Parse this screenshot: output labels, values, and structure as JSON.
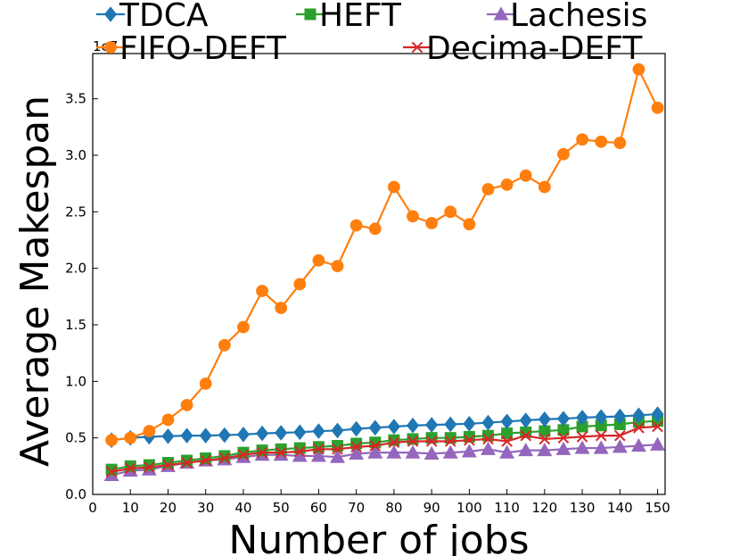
{
  "chart_data": {
    "type": "line",
    "xlabel": "Number of jobs",
    "ylabel": "Average Makespan",
    "y_offset_label": "1e7",
    "xlim": [
      0,
      152
    ],
    "ylim": [
      0,
      3.9
    ],
    "y_scale": 10000000,
    "x_ticks": [
      0,
      10,
      20,
      30,
      40,
      50,
      60,
      70,
      80,
      90,
      100,
      110,
      120,
      130,
      140,
      150
    ],
    "y_ticks": [
      0.0,
      0.5,
      1.0,
      1.5,
      2.0,
      2.5,
      3.0,
      3.5
    ],
    "y_tick_labels": [
      "0.0",
      "0.5",
      "1.0",
      "1.5",
      "2.0",
      "2.5",
      "3.0",
      "3.5"
    ],
    "grid": false,
    "legend_position": "top",
    "x": [
      5,
      10,
      15,
      20,
      25,
      30,
      35,
      40,
      45,
      50,
      55,
      60,
      65,
      70,
      75,
      80,
      85,
      90,
      95,
      100,
      105,
      110,
      115,
      120,
      125,
      130,
      135,
      140,
      145,
      150
    ],
    "series": [
      {
        "name": "TDCA",
        "color": "#1f77b4",
        "marker": "diamond",
        "values": [
          0.48,
          0.5,
          0.51,
          0.515,
          0.52,
          0.52,
          0.525,
          0.53,
          0.54,
          0.545,
          0.55,
          0.56,
          0.565,
          0.58,
          0.59,
          0.6,
          0.61,
          0.615,
          0.62,
          0.625,
          0.635,
          0.645,
          0.655,
          0.665,
          0.67,
          0.68,
          0.685,
          0.69,
          0.7,
          0.71
        ]
      },
      {
        "name": "HEFT",
        "color": "#2ca02c",
        "marker": "square",
        "values": [
          0.22,
          0.25,
          0.26,
          0.28,
          0.3,
          0.32,
          0.34,
          0.37,
          0.39,
          0.4,
          0.41,
          0.42,
          0.43,
          0.45,
          0.46,
          0.48,
          0.49,
          0.5,
          0.5,
          0.51,
          0.52,
          0.54,
          0.55,
          0.56,
          0.57,
          0.6,
          0.61,
          0.62,
          0.64,
          0.65
        ]
      },
      {
        "name": "Lachesis",
        "color": "#9467bd",
        "marker": "triangle",
        "values": [
          0.17,
          0.21,
          0.22,
          0.25,
          0.28,
          0.3,
          0.31,
          0.33,
          0.35,
          0.35,
          0.34,
          0.34,
          0.33,
          0.36,
          0.37,
          0.37,
          0.37,
          0.36,
          0.37,
          0.38,
          0.4,
          0.37,
          0.39,
          0.39,
          0.4,
          0.41,
          0.41,
          0.42,
          0.43,
          0.44
        ]
      },
      {
        "name": "FIFO-DEFT",
        "color": "#ff7f0e",
        "marker": "circle",
        "values": [
          0.48,
          0.5,
          0.56,
          0.66,
          0.79,
          0.98,
          1.32,
          1.48,
          1.8,
          1.65,
          1.86,
          2.07,
          2.02,
          2.38,
          2.35,
          2.72,
          2.46,
          2.4,
          2.5,
          2.39,
          2.7,
          2.74,
          2.82,
          2.72,
          3.01,
          3.14,
          3.12,
          3.11,
          3.76,
          3.42
        ]
      },
      {
        "name": "Decima-DEFT",
        "color": "#d62728",
        "marker": "x",
        "values": [
          0.2,
          0.23,
          0.24,
          0.26,
          0.28,
          0.3,
          0.32,
          0.35,
          0.37,
          0.37,
          0.38,
          0.4,
          0.4,
          0.42,
          0.43,
          0.46,
          0.47,
          0.47,
          0.47,
          0.48,
          0.49,
          0.47,
          0.52,
          0.49,
          0.5,
          0.51,
          0.52,
          0.52,
          0.59,
          0.6
        ]
      }
    ]
  }
}
